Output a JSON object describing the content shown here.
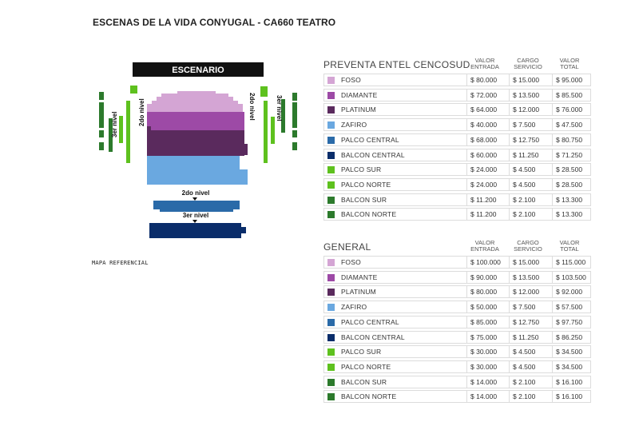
{
  "page": {
    "title": "ESCENAS DE LA VIDA CONYUGAL - CA660 TEATRO",
    "map_reference": "MAPA REFERENCIAL"
  },
  "map": {
    "stage_label": "ESCENARIO",
    "level2_left": "2do nivel",
    "level3_left": "3er nivel",
    "level2_right": "2do nivel",
    "level3_right": "3er nivel",
    "level2_bottom": "2do nivel",
    "level3_bottom": "3er nivel"
  },
  "colors": {
    "FOSO": "#d4a5d4",
    "DIAMANTE": "#9d4aa6",
    "PLATINUM": "#5a2a5d",
    "ZAFIRO": "#6aa8e0",
    "PALCO CENTRAL": "#2a6aa8",
    "BALCON CENTRAL": "#0a2d6a",
    "PALCO SUR": "#5ec11e",
    "PALCO NORTE": "#5ec11e",
    "BALCON SUR": "#2c7a2c",
    "BALCON NORTE": "#2c7a2c"
  },
  "headers": {
    "valor_entrada": [
      "VALOR",
      "ENTRADA"
    ],
    "cargo_servicio": [
      "CARGO",
      "SERVICIO"
    ],
    "valor_total": [
      "VALOR",
      "TOTAL"
    ]
  },
  "preventa": {
    "title": "PREVENTA ENTEL CENCOSUD",
    "rows": [
      {
        "zone": "FOSO",
        "entrada": "$ 80.000",
        "cargo": "$ 15.000",
        "total": "$ 95.000"
      },
      {
        "zone": "DIAMANTE",
        "entrada": "$ 72.000",
        "cargo": "$ 13.500",
        "total": "$ 85.500"
      },
      {
        "zone": "PLATINUM",
        "entrada": "$ 64.000",
        "cargo": "$ 12.000",
        "total": "$ 76.000"
      },
      {
        "zone": "ZAFIRO",
        "entrada": "$ 40.000",
        "cargo": "$ 7.500",
        "total": "$ 47.500"
      },
      {
        "zone": "PALCO CENTRAL",
        "entrada": "$ 68.000",
        "cargo": "$ 12.750",
        "total": "$ 80.750"
      },
      {
        "zone": "BALCON CENTRAL",
        "entrada": "$ 60.000",
        "cargo": "$ 11.250",
        "total": "$ 71.250"
      },
      {
        "zone": "PALCO SUR",
        "entrada": "$ 24.000",
        "cargo": "$ 4.500",
        "total": "$ 28.500"
      },
      {
        "zone": "PALCO NORTE",
        "entrada": "$ 24.000",
        "cargo": "$ 4.500",
        "total": "$ 28.500"
      },
      {
        "zone": "BALCON SUR",
        "entrada": "$ 11.200",
        "cargo": "$ 2.100",
        "total": "$ 13.300"
      },
      {
        "zone": "BALCON NORTE",
        "entrada": "$ 11.200",
        "cargo": "$ 2.100",
        "total": "$ 13.300"
      }
    ]
  },
  "general": {
    "title": "GENERAL",
    "rows": [
      {
        "zone": "FOSO",
        "entrada": "$ 100.000",
        "cargo": "$ 15.000",
        "total": "$ 115.000"
      },
      {
        "zone": "DIAMANTE",
        "entrada": "$ 90.000",
        "cargo": "$ 13.500",
        "total": "$ 103.500"
      },
      {
        "zone": "PLATINUM",
        "entrada": "$ 80.000",
        "cargo": "$ 12.000",
        "total": "$ 92.000"
      },
      {
        "zone": "ZAFIRO",
        "entrada": "$ 50.000",
        "cargo": "$ 7.500",
        "total": "$ 57.500"
      },
      {
        "zone": "PALCO CENTRAL",
        "entrada": "$ 85.000",
        "cargo": "$ 12.750",
        "total": "$ 97.750"
      },
      {
        "zone": "BALCON CENTRAL",
        "entrada": "$ 75.000",
        "cargo": "$ 11.250",
        "total": "$ 86.250"
      },
      {
        "zone": "PALCO SUR",
        "entrada": "$ 30.000",
        "cargo": "$ 4.500",
        "total": "$ 34.500"
      },
      {
        "zone": "PALCO NORTE",
        "entrada": "$ 30.000",
        "cargo": "$ 4.500",
        "total": "$ 34.500"
      },
      {
        "zone": "BALCON SUR",
        "entrada": "$ 14.000",
        "cargo": "$ 2.100",
        "total": "$ 16.100"
      },
      {
        "zone": "BALCON NORTE",
        "entrada": "$ 14.000",
        "cargo": "$ 2.100",
        "total": "$ 16.100"
      }
    ]
  }
}
